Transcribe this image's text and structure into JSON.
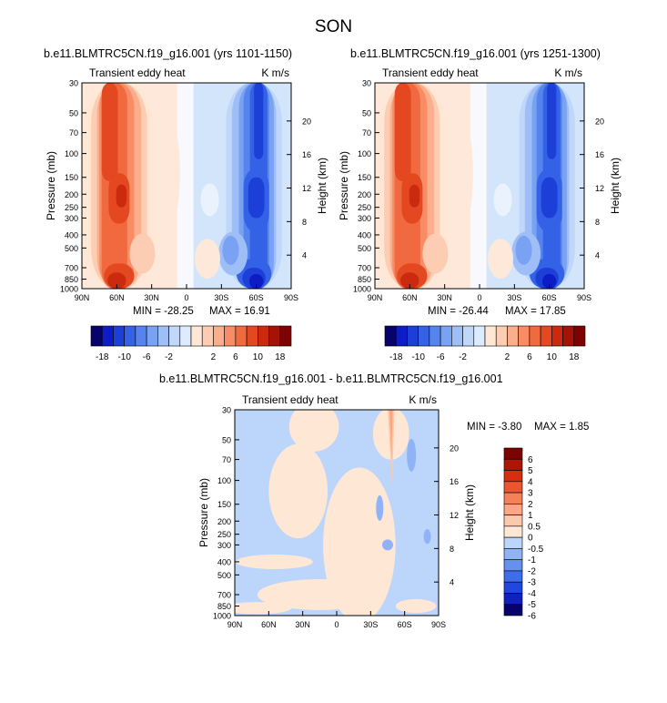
{
  "figure": {
    "title": "SON"
  },
  "colors": {
    "levels": [
      "#08036a",
      "#0d1cc4",
      "#1c3fd8",
      "#3462e6",
      "#5684ee",
      "#7aa2f2",
      "#9ebef7",
      "#c0d7fa",
      "#dcebfe",
      "#ffe7d6",
      "#fdcdb3",
      "#fbae8b",
      "#f78c65",
      "#f1693f",
      "#e44820",
      "#cc2a0e",
      "#a51206",
      "#7d0202"
    ],
    "diff": [
      "#08036a",
      "#1021c0",
      "#2247db",
      "#3d6de8",
      "#6690f0",
      "#8fb3f6",
      "#bbd5fb",
      "#ffe7d6",
      "#fdc9ad",
      "#fba882",
      "#f5815a",
      "#eb5630",
      "#d62e10",
      "#b01405",
      "#7d0202"
    ],
    "bg_left": "#fde8d9",
    "bg_right": "#d3e5fb"
  },
  "chart_data": [
    {
      "type": "heatmap",
      "id": "panel1",
      "title": "b.e11.BLMTRC5CN.f19_g16.001 (yrs 1101-1150)",
      "left_label": "Transient eddy heat",
      "right_label": "K m/s",
      "ylabel": "Pressure (mb)",
      "y2label": "Height (km)",
      "x_ticks": [
        "90N",
        "60N",
        "30N",
        "0",
        "30S",
        "60S",
        "90S"
      ],
      "x_values": [
        90,
        60,
        30,
        0,
        -30,
        -60,
        -90
      ],
      "y_ticks": [
        "30",
        "50",
        "70",
        "100",
        "150",
        "200",
        "250",
        "300",
        "400",
        "500",
        "700",
        "850",
        "1000"
      ],
      "y_values": [
        30,
        50,
        70,
        100,
        150,
        200,
        250,
        300,
        400,
        500,
        700,
        850,
        1000
      ],
      "y2_ticks": [
        "4",
        "8",
        "12",
        "16",
        "20"
      ],
      "y2_values": [
        4,
        8,
        12,
        16,
        20
      ],
      "ylim": [
        1000,
        30
      ],
      "xlim": [
        90,
        -90
      ],
      "min_label": "MIN = -28.25",
      "max_label": "MAX = 16.91",
      "min": -28.25,
      "max": 16.91,
      "positive_core": {
        "lat": 56,
        "pressure": 200,
        "value": 16.91
      },
      "negative_core": {
        "lat": -60,
        "pressure": 200,
        "value": -28.25
      }
    },
    {
      "type": "heatmap",
      "id": "panel2",
      "title": "b.e11.BLMTRC5CN.f19_g16.001 (yrs 1251-1300)",
      "left_label": "Transient eddy heat",
      "right_label": "K m/s",
      "ylabel": "Pressure (mb)",
      "y2label": "Height (km)",
      "x_ticks": [
        "90N",
        "60N",
        "30N",
        "0",
        "30S",
        "60S",
        "90S"
      ],
      "x_values": [
        90,
        60,
        30,
        0,
        -30,
        -60,
        -90
      ],
      "y_ticks": [
        "30",
        "50",
        "70",
        "100",
        "150",
        "200",
        "250",
        "300",
        "400",
        "500",
        "700",
        "850",
        "1000"
      ],
      "y_values": [
        30,
        50,
        70,
        100,
        150,
        200,
        250,
        300,
        400,
        500,
        700,
        850,
        1000
      ],
      "y2_ticks": [
        "4",
        "8",
        "12",
        "16",
        "20"
      ],
      "y2_values": [
        4,
        8,
        12,
        16,
        20
      ],
      "ylim": [
        1000,
        30
      ],
      "xlim": [
        90,
        -90
      ],
      "min_label": "MIN = -26.44",
      "max_label": "MAX = 17.85",
      "min": -26.44,
      "max": 17.85,
      "positive_core": {
        "lat": 56,
        "pressure": 200,
        "value": 17.85
      },
      "negative_core": {
        "lat": -60,
        "pressure": 200,
        "value": -26.44
      }
    },
    {
      "type": "heatmap",
      "id": "panel3",
      "title": "b.e11.BLMTRC5CN.f19_g16.001 - b.e11.BLMTRC5CN.f19_g16.001",
      "left_label": "Transient eddy heat",
      "right_label": "K m/s",
      "ylabel": "Pressure (mb)",
      "y2label": "Height (km)",
      "x_ticks": [
        "90N",
        "60N",
        "30N",
        "0",
        "30S",
        "60S",
        "90S"
      ],
      "x_values": [
        90,
        60,
        30,
        0,
        -30,
        -60,
        -90
      ],
      "y_ticks": [
        "30",
        "50",
        "70",
        "100",
        "150",
        "200",
        "250",
        "300",
        "400",
        "500",
        "700",
        "850",
        "1000"
      ],
      "y_values": [
        30,
        50,
        70,
        100,
        150,
        200,
        250,
        300,
        400,
        500,
        700,
        850,
        1000
      ],
      "y2_ticks": [
        "4",
        "8",
        "12",
        "16",
        "20"
      ],
      "y2_values": [
        4,
        8,
        12,
        16,
        20
      ],
      "ylim": [
        1000,
        30
      ],
      "xlim": [
        90,
        -90
      ],
      "min_label": "MIN = -3.80",
      "max_label": "MAX = 1.85",
      "min": -3.8,
      "max": 1.85
    }
  ],
  "colorbar_main": {
    "labels": [
      "-18",
      "-10",
      "-6",
      "-2",
      "2",
      "6",
      "10",
      "18"
    ],
    "label_values": [
      -18,
      -10,
      -6,
      -2,
      2,
      6,
      10,
      18
    ],
    "levels": [
      -18,
      -14,
      -10,
      -8,
      -6,
      -4,
      -2,
      -1,
      0,
      1,
      2,
      4,
      6,
      8,
      10,
      14,
      18
    ]
  },
  "colorbar_diff": {
    "labels": [
      "6",
      "5",
      "4",
      "3",
      "2",
      "1",
      "0.5",
      "0",
      "-0.5",
      "-1",
      "-2",
      "-3",
      "-4",
      "-5",
      "-6"
    ],
    "levels": [
      6,
      5,
      4,
      3,
      2,
      1,
      0.5,
      0,
      -0.5,
      -1,
      -2,
      -3,
      -4,
      -5,
      -6
    ]
  }
}
